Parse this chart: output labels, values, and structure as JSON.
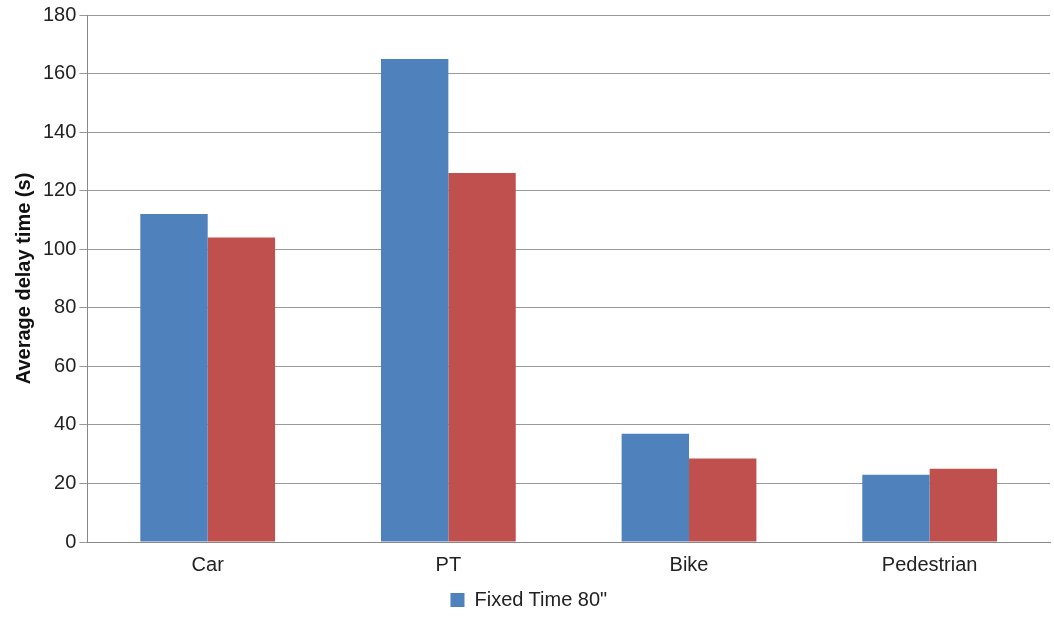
{
  "chart_data": {
    "type": "bar",
    "ylabel": "Average delay time (s)",
    "categories": [
      "Car",
      "PT",
      "Bike",
      "Pedestrian"
    ],
    "series": [
      {
        "name": "Fixed Time 80\"",
        "color": "#4f81bd",
        "values": [
          112,
          165,
          37,
          23
        ]
      },
      {
        "color": "#c0504d",
        "values": [
          104,
          126,
          28.5,
          25
        ]
      }
    ],
    "ylim": [
      0,
      180
    ],
    "yticks": [
      0,
      20,
      40,
      60,
      80,
      100,
      120,
      140,
      160,
      180
    ],
    "grid": "y",
    "legend": "bottom"
  }
}
